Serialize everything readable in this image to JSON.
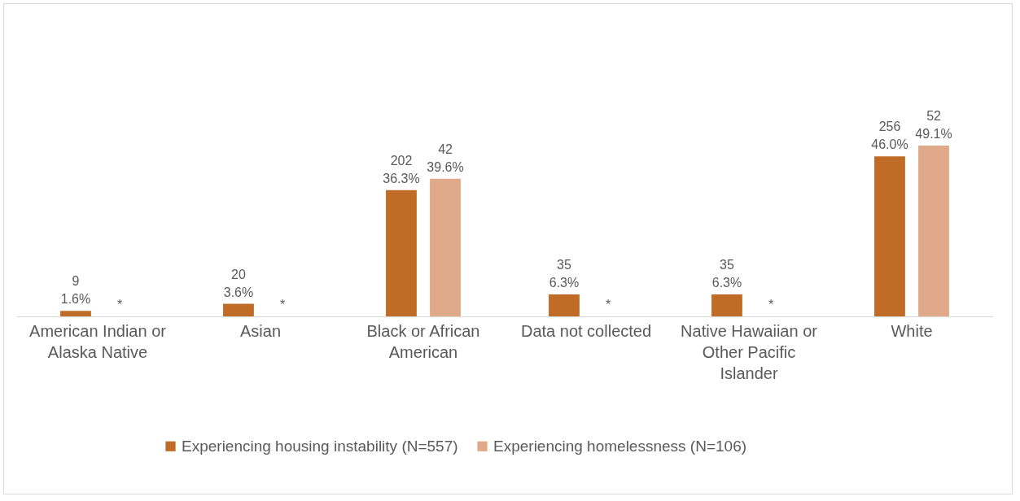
{
  "chart_data": {
    "type": "bar",
    "categories": [
      "American Indian or Alaska Native",
      "Asian",
      "Black or African American",
      "Data not collected",
      "Native Hawaiian or Other Pacific Islander",
      "White"
    ],
    "series": [
      {
        "name": "Experiencing housing instability (N=557)",
        "color": "#bf6c28",
        "values": [
          1.6,
          3.6,
          36.3,
          6.3,
          6.3,
          46.0
        ],
        "value_labels": [
          "9\n1.6%",
          "20\n3.6%",
          "202\n36.3%",
          "35\n6.3%",
          "35\n6.3%",
          "256\n46.0%"
        ]
      },
      {
        "name": "Experiencing homelessness (N=106)",
        "color": "#e0a98a",
        "values": [
          null,
          null,
          39.6,
          null,
          null,
          49.1
        ],
        "value_labels": [
          "*",
          "*",
          "42\n39.6%",
          "*",
          "*",
          "52\n49.1%"
        ]
      }
    ],
    "legend": "bottom"
  }
}
